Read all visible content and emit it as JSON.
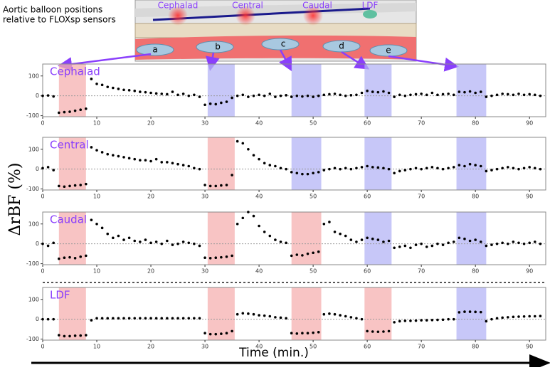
{
  "figure": {
    "ylabel": "ΔrBF (%)",
    "xlabel": "Time (min.)"
  },
  "illustration": {
    "caption": [
      "Aortic balloon positions",
      "relative to FLOXsp sensors"
    ],
    "regions": [
      "Cephalad",
      "Central",
      "Caudal",
      "LDF"
    ],
    "sensors": [
      "a",
      "b",
      "c",
      "d",
      "e"
    ]
  },
  "chart_data": [
    {
      "type": "scatter",
      "title": "Cephalad",
      "xlim": [
        0,
        93
      ],
      "ylim": [
        -105,
        160
      ],
      "xticks": [
        0,
        10,
        20,
        30,
        40,
        50,
        60,
        70,
        80,
        90
      ],
      "yticks": [
        -100,
        0,
        100
      ],
      "zeroline": true,
      "spans": [
        {
          "x": [
            3,
            8
          ],
          "color": "#f5b0b0"
        },
        {
          "x": [
            30.5,
            35.5
          ],
          "color": "#b4b4f5"
        },
        {
          "x": [
            46,
            51.5
          ],
          "color": "#b4b4f5"
        },
        {
          "x": [
            59.5,
            64.5
          ],
          "color": "#b4b4f5"
        },
        {
          "x": [
            76.5,
            82
          ],
          "color": "#b4b4f5"
        }
      ],
      "series": [
        {
          "color": "#000000",
          "x": [
            0,
            1,
            2,
            3,
            4,
            5,
            6,
            7,
            8,
            9,
            10,
            11,
            12,
            13,
            14,
            15,
            16,
            17,
            18,
            19,
            20,
            21,
            22,
            23,
            24,
            25,
            26,
            27,
            28,
            29,
            30,
            31,
            32,
            33,
            34,
            35,
            36,
            37,
            38,
            39,
            40,
            41,
            42,
            43,
            44,
            45,
            46,
            47,
            48,
            49,
            50,
            51,
            52,
            53,
            54,
            55,
            56,
            57,
            58,
            59,
            60,
            61,
            62,
            63,
            64,
            65,
            66,
            67,
            68,
            69,
            70,
            71,
            72,
            73,
            74,
            75,
            76,
            77,
            78,
            79,
            80,
            81,
            82,
            83,
            84,
            85,
            86,
            87,
            88,
            89,
            90,
            91,
            92
          ],
          "values": [
            0,
            2,
            -3,
            -85,
            -82,
            -80,
            -75,
            -70,
            -65,
            85,
            60,
            55,
            45,
            40,
            35,
            30,
            28,
            25,
            20,
            18,
            15,
            12,
            10,
            8,
            20,
            5,
            10,
            0,
            5,
            -5,
            -45,
            -40,
            -42,
            -35,
            -30,
            -10,
            0,
            5,
            -5,
            0,
            5,
            0,
            10,
            -5,
            0,
            3,
            -5,
            0,
            -3,
            0,
            -5,
            0,
            5,
            8,
            10,
            5,
            0,
            3,
            5,
            15,
            25,
            20,
            18,
            22,
            15,
            -5,
            5,
            0,
            5,
            8,
            10,
            5,
            15,
            5,
            8,
            10,
            5,
            20,
            18,
            22,
            15,
            20,
            -5,
            0,
            5,
            10,
            8,
            5,
            10,
            5,
            8,
            5,
            0
          ]
        }
      ]
    },
    {
      "type": "scatter",
      "title": "Central",
      "xlim": [
        0,
        93
      ],
      "ylim": [
        -105,
        160
      ],
      "xticks": [
        0,
        10,
        20,
        30,
        40,
        50,
        60,
        70,
        80,
        90
      ],
      "yticks": [
        -100,
        0,
        100
      ],
      "zeroline": true,
      "spans": [
        {
          "x": [
            3,
            8
          ],
          "color": "#f5b0b0"
        },
        {
          "x": [
            30.5,
            35.5
          ],
          "color": "#f5b0b0"
        },
        {
          "x": [
            46,
            51.5
          ],
          "color": "#b4b4f5"
        },
        {
          "x": [
            59.5,
            64.5
          ],
          "color": "#b4b4f5"
        },
        {
          "x": [
            76.5,
            82
          ],
          "color": "#b4b4f5"
        }
      ],
      "series": [
        {
          "color": "#000000",
          "x": [
            0,
            1,
            2,
            3,
            4,
            5,
            6,
            7,
            8,
            9,
            10,
            11,
            12,
            13,
            14,
            15,
            16,
            17,
            18,
            19,
            20,
            21,
            22,
            23,
            24,
            25,
            26,
            27,
            28,
            29,
            30,
            31,
            32,
            33,
            34,
            35,
            36,
            37,
            38,
            39,
            40,
            41,
            42,
            43,
            44,
            45,
            46,
            47,
            48,
            49,
            50,
            51,
            52,
            53,
            54,
            55,
            56,
            57,
            58,
            59,
            60,
            61,
            62,
            63,
            64,
            65,
            66,
            67,
            68,
            69,
            70,
            71,
            72,
            73,
            74,
            75,
            76,
            77,
            78,
            79,
            80,
            81,
            82,
            83,
            84,
            85,
            86,
            87,
            88,
            89,
            90,
            91,
            92
          ],
          "values": [
            5,
            10,
            -5,
            -85,
            -88,
            -85,
            -82,
            -80,
            -75,
            110,
            95,
            85,
            75,
            70,
            65,
            60,
            55,
            50,
            45,
            45,
            40,
            50,
            35,
            35,
            30,
            25,
            20,
            15,
            5,
            0,
            -80,
            -85,
            -85,
            -82,
            -80,
            -30,
            140,
            130,
            100,
            70,
            50,
            30,
            20,
            15,
            5,
            0,
            -15,
            -20,
            -25,
            -25,
            -20,
            -15,
            -5,
            0,
            5,
            0,
            5,
            0,
            5,
            10,
            15,
            10,
            8,
            5,
            0,
            -20,
            -10,
            -5,
            0,
            5,
            0,
            5,
            10,
            5,
            0,
            5,
            10,
            20,
            15,
            25,
            20,
            15,
            -10,
            -5,
            0,
            5,
            10,
            5,
            0,
            5,
            10,
            5,
            0
          ]
        }
      ]
    },
    {
      "type": "scatter",
      "title": "Caudal",
      "xlim": [
        0,
        93
      ],
      "ylim": [
        -105,
        160
      ],
      "xticks": [
        0,
        10,
        20,
        30,
        40,
        50,
        60,
        70,
        80,
        90
      ],
      "yticks": [
        -100,
        0,
        100
      ],
      "zeroline": true,
      "spans": [
        {
          "x": [
            3,
            8
          ],
          "color": "#f5b0b0"
        },
        {
          "x": [
            30.5,
            35.5
          ],
          "color": "#f5b0b0"
        },
        {
          "x": [
            46,
            51.5
          ],
          "color": "#f5b0b0"
        },
        {
          "x": [
            59.5,
            64.5
          ],
          "color": "#b4b4f5"
        },
        {
          "x": [
            76.5,
            82
          ],
          "color": "#b4b4f5"
        }
      ],
      "series": [
        {
          "color": "#000000",
          "x": [
            0,
            1,
            2,
            3,
            4,
            5,
            6,
            7,
            8,
            9,
            10,
            11,
            12,
            13,
            14,
            15,
            16,
            17,
            18,
            19,
            20,
            21,
            22,
            23,
            24,
            25,
            26,
            27,
            28,
            29,
            30,
            31,
            32,
            33,
            34,
            35,
            36,
            37,
            38,
            39,
            40,
            41,
            42,
            43,
            44,
            45,
            46,
            47,
            48,
            49,
            50,
            51,
            52,
            53,
            54,
            55,
            56,
            57,
            58,
            59,
            60,
            61,
            62,
            63,
            64,
            65,
            66,
            67,
            68,
            69,
            70,
            71,
            72,
            73,
            74,
            75,
            76,
            77,
            78,
            79,
            80,
            81,
            82,
            83,
            84,
            85,
            86,
            87,
            88,
            89,
            90,
            91,
            92
          ],
          "values": [
            0,
            -10,
            5,
            -75,
            -70,
            -68,
            -72,
            -65,
            -60,
            120,
            100,
            80,
            50,
            30,
            40,
            20,
            30,
            15,
            10,
            20,
            5,
            10,
            0,
            15,
            -5,
            0,
            10,
            5,
            0,
            -10,
            -70,
            -72,
            -70,
            -68,
            -65,
            -60,
            100,
            130,
            160,
            140,
            90,
            60,
            40,
            20,
            10,
            5,
            -60,
            -55,
            -58,
            -50,
            -45,
            -40,
            100,
            110,
            60,
            50,
            40,
            20,
            10,
            20,
            30,
            25,
            20,
            10,
            15,
            -20,
            -15,
            -10,
            -20,
            -5,
            0,
            -15,
            -10,
            0,
            -5,
            5,
            10,
            30,
            25,
            15,
            20,
            10,
            -10,
            -5,
            0,
            5,
            0,
            10,
            5,
            0,
            5,
            10,
            0
          ]
        }
      ]
    },
    {
      "type": "scatter",
      "title": "LDF",
      "xlim": [
        0,
        93
      ],
      "ylim": [
        -105,
        160
      ],
      "xticks": [
        0,
        10,
        20,
        30,
        40,
        50,
        60,
        70,
        80,
        90
      ],
      "yticks": [
        -100,
        0,
        100
      ],
      "zeroline": true,
      "spans": [
        {
          "x": [
            3,
            8
          ],
          "color": "#f5b0b0"
        },
        {
          "x": [
            30.5,
            35.5
          ],
          "color": "#f5b0b0"
        },
        {
          "x": [
            46,
            51.5
          ],
          "color": "#f5b0b0"
        },
        {
          "x": [
            59.5,
            64.5
          ],
          "color": "#f5b0b0"
        },
        {
          "x": [
            76.5,
            82
          ],
          "color": "#b4b4f5"
        }
      ],
      "series": [
        {
          "color": "#000000",
          "x": [
            0,
            1,
            2,
            3,
            4,
            5,
            6,
            7,
            8,
            9,
            10,
            11,
            12,
            13,
            14,
            15,
            16,
            17,
            18,
            19,
            20,
            21,
            22,
            23,
            24,
            25,
            26,
            27,
            28,
            29,
            30,
            31,
            32,
            33,
            34,
            35,
            36,
            37,
            38,
            39,
            40,
            41,
            42,
            43,
            44,
            45,
            46,
            47,
            48,
            49,
            50,
            51,
            52,
            53,
            54,
            55,
            56,
            57,
            58,
            59,
            60,
            61,
            62,
            63,
            64,
            65,
            66,
            67,
            68,
            69,
            70,
            71,
            72,
            73,
            74,
            75,
            76,
            77,
            78,
            79,
            80,
            81,
            82,
            83,
            84,
            85,
            86,
            87,
            88,
            89,
            90,
            91,
            92
          ],
          "values": [
            0,
            0,
            0,
            -80,
            -85,
            -85,
            -83,
            -82,
            -80,
            -5,
            5,
            5,
            5,
            5,
            5,
            5,
            5,
            5,
            5,
            5,
            5,
            5,
            5,
            5,
            5,
            5,
            5,
            5,
            5,
            5,
            -70,
            -75,
            -75,
            -73,
            -70,
            -60,
            25,
            30,
            28,
            25,
            20,
            18,
            15,
            10,
            8,
            5,
            -70,
            -72,
            -70,
            -70,
            -68,
            -65,
            25,
            28,
            25,
            20,
            15,
            10,
            5,
            0,
            -60,
            -62,
            -63,
            -62,
            -60,
            -15,
            -10,
            -8,
            -8,
            -7,
            -5,
            -5,
            -4,
            -3,
            -2,
            0,
            0,
            35,
            38,
            38,
            37,
            36,
            -10,
            0,
            5,
            8,
            10,
            12,
            13,
            14,
            15,
            15,
            16
          ]
        }
      ]
    }
  ]
}
